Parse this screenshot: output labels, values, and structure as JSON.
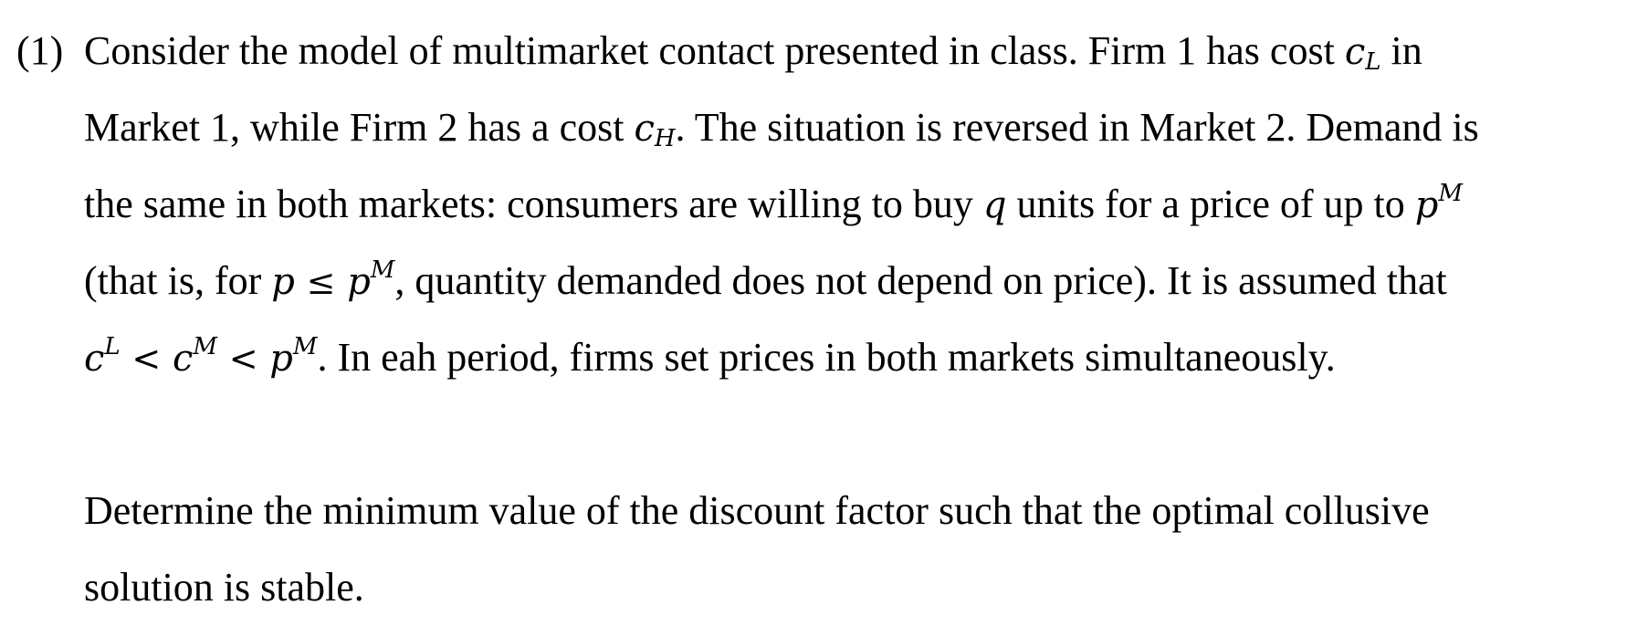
{
  "question": {
    "number": "(1)",
    "p1": {
      "l1_a": "Consider the model of multimarket contact presented in class. Firm 1 has cost ",
      "l1_b": " in",
      "l2_a": "Market 1, while Firm 2 has a cost ",
      "l2_b": ". The situation is reversed in Market 2. Demand is",
      "l3_a": "the same in both markets: consumers are willing to buy ",
      "l3_b": " units for a price of up to ",
      "l4_a": "(that is, for ",
      "l4_b": ", quantity demanded does not depend on price). It is assumed that",
      "l5_b": ". In eah period, firms set prices in both markets simultaneously."
    },
    "p2": {
      "line1": "Determine the minimum value of the discount factor such that the optimal collusive",
      "line2": "solution is stable."
    },
    "math": {
      "c": "c",
      "p": "p",
      "q": "q",
      "sub_L": "L",
      "sub_H": "H",
      "sup_M": "M",
      "sup_L": "L",
      "leq": "≤",
      "lt": "<"
    }
  }
}
